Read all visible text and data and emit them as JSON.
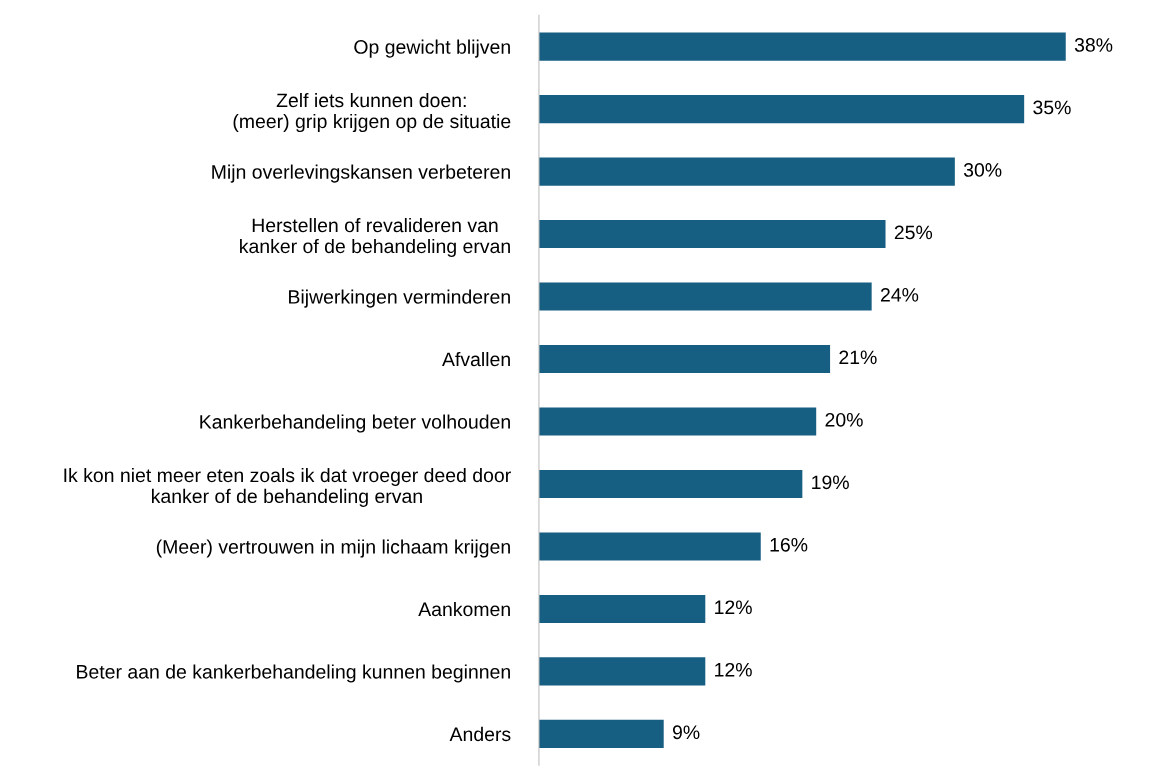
{
  "chart_data": {
    "type": "bar",
    "orientation": "horizontal",
    "categories": [
      "Op gewicht blijven",
      "Zelf iets kunnen doen:\n(meer) grip krijgen op de situatie",
      "Mijn overlevingskansen verbeteren",
      "Herstellen of revalideren van\nkanker of de behandeling ervan",
      "Bijwerkingen verminderen",
      "Afvallen",
      "Kankerbehandeling beter volhouden",
      "Ik kon niet meer eten zoals ik dat vroeger deed door\nkanker of de behandeling ervan",
      "(Meer) vertrouwen in mijn lichaam krijgen",
      "Aankomen",
      "Beter aan de kankerbehandeling kunnen beginnen",
      "Anders"
    ],
    "values": [
      38,
      35,
      30,
      25,
      24,
      21,
      20,
      19,
      16,
      12,
      12,
      9
    ],
    "value_labels": [
      "38%",
      "35%",
      "30%",
      "25%",
      "24%",
      "21%",
      "20%",
      "19%",
      "16%",
      "12%",
      "12%",
      "9%"
    ],
    "color": "#175f82",
    "grid": false,
    "legend": false
  }
}
